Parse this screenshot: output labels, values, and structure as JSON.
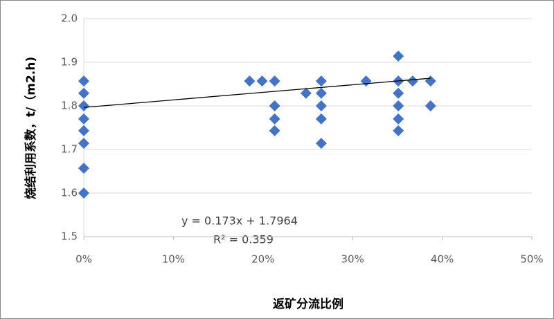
{
  "chart_data": {
    "type": "scatter",
    "x_label": "返矿分流比例",
    "y_label": "烧结利用系数，t/（m2.h)",
    "annotations": [
      "y = 0.173x + 1.7964",
      "R² = 0.359"
    ],
    "xlim": [
      0,
      50
    ],
    "ylim": [
      1.5,
      2.0
    ],
    "xticks": [
      {
        "value": 0,
        "label": "0%"
      },
      {
        "value": 10,
        "label": "10%"
      },
      {
        "value": 20,
        "label": "20%"
      },
      {
        "value": 30,
        "label": "30%"
      },
      {
        "value": 40,
        "label": "40%"
      },
      {
        "value": 50,
        "label": "50%"
      }
    ],
    "yticks": [
      1.5,
      1.6,
      1.7,
      1.8,
      1.9,
      {
        "value": 2.0,
        "label": "2.0"
      }
    ],
    "grid": true,
    "series": [
      {
        "color": "#4472c4",
        "x": [
          0,
          0,
          0,
          0,
          0,
          0,
          0,
          0,
          18.5,
          19.9,
          21.3,
          21.3,
          21.3,
          21.3,
          24.8,
          26.5,
          26.5,
          26.5,
          26.5,
          26.5,
          31.5,
          35.1,
          35.1,
          35.1,
          35.1,
          35.1,
          35.1,
          36.7,
          38.7,
          38.7
        ],
        "values": [
          1.857,
          1.829,
          1.8,
          1.77,
          1.743,
          1.714,
          1.657,
          1.6,
          1.857,
          1.857,
          1.857,
          1.8,
          1.77,
          1.743,
          1.829,
          1.857,
          1.829,
          1.8,
          1.77,
          1.714,
          1.857,
          1.914,
          1.857,
          1.829,
          1.8,
          1.77,
          1.743,
          1.857,
          1.857,
          1.8
        ]
      }
    ],
    "trendline": {
      "color": "#000000",
      "x": [
        0,
        38.7
      ],
      "y": [
        1.7964,
        1.8634
      ]
    }
  }
}
